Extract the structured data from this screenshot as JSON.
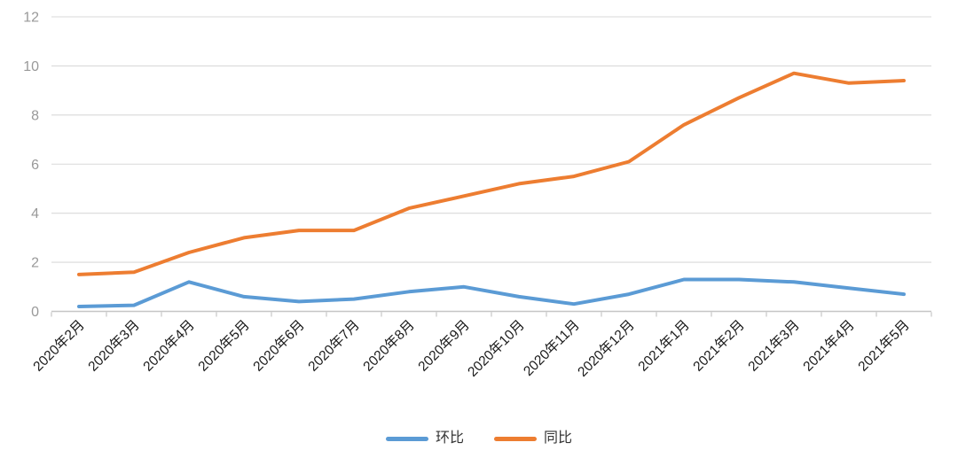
{
  "chart_data": {
    "type": "line",
    "title": "",
    "xlabel": "",
    "ylabel": "",
    "categories": [
      "2020年2月",
      "2020年3月",
      "2020年4月",
      "2020年5月",
      "2020年6月",
      "2020年7月",
      "2020年8月",
      "2020年9月",
      "2020年10月",
      "2020年11月",
      "2020年12月",
      "2021年1月",
      "2021年2月",
      "2021年3月",
      "2021年4月",
      "2021年5月"
    ],
    "series": [
      {
        "name": "环比",
        "color": "#5B9BD5",
        "values": [
          0.2,
          0.25,
          1.2,
          0.6,
          0.4,
          0.5,
          0.8,
          1.0,
          0.6,
          0.3,
          0.7,
          1.3,
          1.3,
          1.2,
          0.95,
          0.7
        ]
      },
      {
        "name": "同比",
        "color": "#ED7D31",
        "values": [
          1.5,
          1.6,
          2.4,
          3.0,
          3.3,
          3.3,
          4.2,
          4.7,
          5.2,
          5.5,
          6.1,
          7.6,
          8.7,
          9.7,
          9.3,
          9.4
        ]
      }
    ],
    "ylim": [
      0,
      12
    ],
    "y_ticks": [
      0,
      2,
      4,
      6,
      8,
      10,
      12
    ],
    "grid": true,
    "legend_position": "bottom",
    "x_label_rotation": -45
  },
  "style": {
    "gridline_color": "#D9D9D9",
    "axis_color": "#C6C6C6",
    "y_label_color": "#999999",
    "x_label_color": "#1A1A1A",
    "background": "#FFFFFF",
    "line_width": 4
  }
}
